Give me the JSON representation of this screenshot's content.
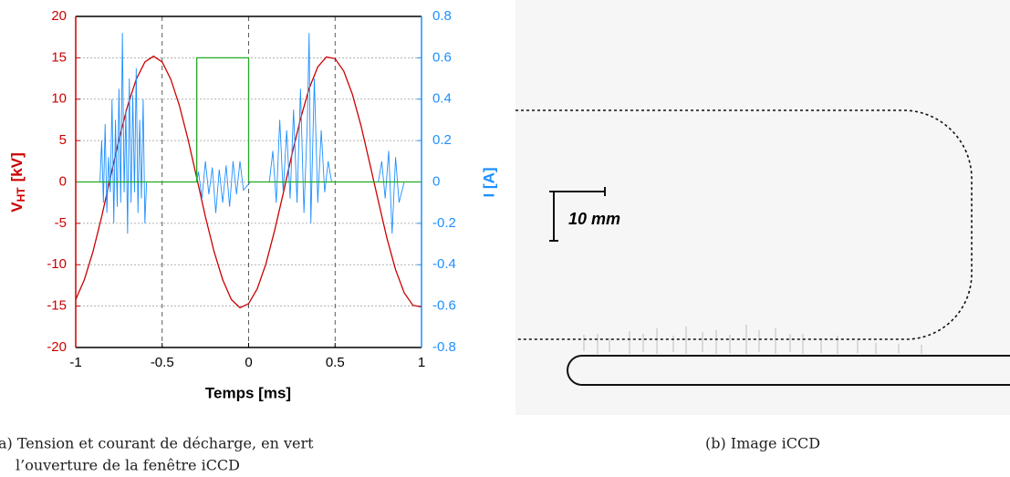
{
  "chart_data": {
    "type": "line",
    "xlabel": "Temps  [ms]",
    "ylabel": {
      "main": "V",
      "sub": "HT",
      "unit": "[kV]"
    },
    "y2label": "I  [A]",
    "xlim": [
      -1,
      1
    ],
    "xticks": [
      -1,
      -0.5,
      0,
      0.5,
      1
    ],
    "ylim": [
      -20,
      20
    ],
    "yticks": [
      -20,
      -15,
      -10,
      -5,
      0,
      5,
      10,
      15,
      20
    ],
    "y2lim": [
      -0.8,
      0.8
    ],
    "y2ticks": [
      -0.8,
      -0.6,
      -0.4,
      -0.2,
      0,
      0.2,
      0.4,
      0.6,
      0.8
    ],
    "grid": true,
    "caption": [
      "a) Tension et courant de décharge, en vert",
      "l’ouverture de la fenêtre iCCD"
    ],
    "series": [
      {
        "color": "#cc0000",
        "x": [
          -1,
          -0.95,
          -0.9,
          -0.85,
          -0.8,
          -0.75,
          -0.7,
          -0.65,
          -0.6,
          -0.55,
          -0.5,
          -0.45,
          -0.4,
          -0.35,
          -0.3,
          -0.25,
          -0.2,
          -0.15,
          -0.1,
          -0.05,
          0,
          0.05,
          0.1,
          0.15,
          0.2,
          0.25,
          0.3,
          0.35,
          0.4,
          0.45,
          0.5,
          0.55,
          0.6,
          0.65,
          0.7,
          0.75,
          0.8,
          0.85,
          0.9,
          0.95,
          1
        ],
        "values": [
          -14.2,
          -11.8,
          -8.4,
          -4.2,
          0.5,
          5.1,
          9.2,
          12.4,
          14.5,
          15.2,
          14.5,
          12.4,
          9.2,
          5.1,
          0.5,
          -4.2,
          -8.4,
          -11.8,
          -14.2,
          -15.2,
          -14.7,
          -12.9,
          -9.9,
          -5.9,
          -1.4,
          3.3,
          7.6,
          11.3,
          13.9,
          15.1,
          14.9,
          13.4,
          10.6,
          6.8,
          2.3,
          -2.3,
          -6.8,
          -10.6,
          -13.4,
          -14.9,
          -15.1
        ]
      },
      {
        "color": "#1e90ff",
        "axis": "y2",
        "x": [
          -1,
          -0.86,
          -0.85,
          -0.84,
          -0.83,
          -0.82,
          -0.81,
          -0.8,
          -0.79,
          -0.78,
          -0.77,
          -0.76,
          -0.75,
          -0.74,
          -0.73,
          -0.72,
          -0.71,
          -0.7,
          -0.69,
          -0.68,
          -0.67,
          -0.66,
          -0.65,
          -0.64,
          -0.63,
          -0.62,
          -0.61,
          -0.6,
          -0.59,
          -0.3,
          -0.29,
          -0.27,
          -0.25,
          -0.23,
          -0.21,
          -0.19,
          -0.17,
          -0.15,
          -0.13,
          -0.11,
          -0.09,
          -0.07,
          -0.05,
          -0.03,
          0.01,
          0.12,
          0.14,
          0.16,
          0.18,
          0.2,
          0.22,
          0.24,
          0.26,
          0.28,
          0.3,
          0.32,
          0.34,
          0.35,
          0.36,
          0.38,
          0.4,
          0.42,
          0.44,
          0.46,
          0.48,
          0.75,
          0.77,
          0.79,
          0.81,
          0.83,
          0.85,
          0.87,
          0.9,
          1
        ],
        "values": [
          0,
          0,
          0.2,
          -0.1,
          0.28,
          -0.15,
          0.12,
          -0.05,
          0.4,
          -0.2,
          0.3,
          -0.12,
          0.45,
          -0.1,
          0.72,
          -0.05,
          0.35,
          -0.25,
          0.5,
          -0.1,
          0.42,
          -0.05,
          0.55,
          -0.15,
          0.3,
          -0.08,
          0.4,
          -0.2,
          0,
          0,
          0.05,
          -0.08,
          0.1,
          -0.06,
          0.07,
          -0.15,
          0.06,
          -0.1,
          0.08,
          -0.12,
          0.1,
          -0.06,
          0.1,
          -0.04,
          0,
          0,
          0.15,
          -0.1,
          0.3,
          -0.05,
          0.25,
          -0.08,
          0.35,
          -0.1,
          0.45,
          -0.15,
          0.3,
          0.72,
          -0.2,
          0.5,
          -0.1,
          0.25,
          -0.05,
          0.1,
          0,
          0,
          0.1,
          -0.08,
          0.15,
          -0.25,
          0.12,
          -0.1,
          0,
          0
        ]
      },
      {
        "color": "#22aa22",
        "x": [
          -1,
          -0.3,
          -0.3,
          0,
          0,
          1
        ],
        "values": [
          0,
          0,
          15,
          15,
          0,
          0
        ]
      }
    ]
  },
  "image_panel": {
    "scale_label": "10 mm",
    "caption": "(b) Image iCCD"
  }
}
